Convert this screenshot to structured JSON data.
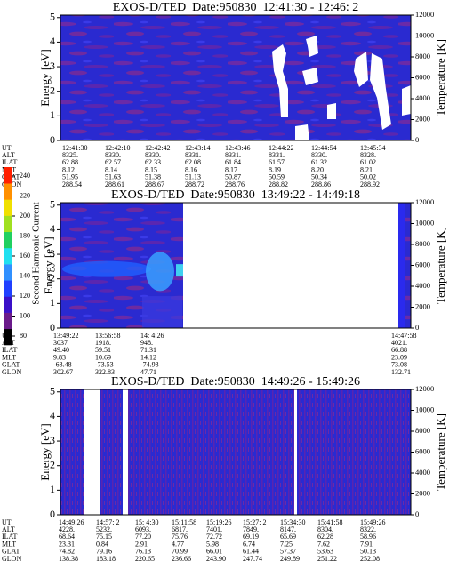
{
  "chart_data": [
    {
      "type": "spectrogram",
      "title": "EXOS-D/TED  Date:950830  12:41:30 - 12:46: 2",
      "ylabel": "Energy [eV]",
      "y2label": "Temperature [K]",
      "ylim": [
        0,
        5.1
      ],
      "yticks": [
        0,
        1,
        2,
        3,
        4,
        5
      ],
      "y2lim": [
        0,
        12000
      ],
      "y2ticks": [
        0,
        2000,
        4000,
        6000,
        8000,
        10000,
        12000
      ],
      "ephemeris": {
        "labels": [
          "UT",
          "ALT",
          "ILAT",
          "MLT",
          "GLAT",
          "GLON"
        ],
        "rows": [
          [
            "12:41:30",
            "12:42:10",
            "12:42:42",
            "12:43:14",
            "12:43:46",
            "12:44:22",
            "12:44:54",
            "12:45:34"
          ],
          [
            "8325.",
            "8330.",
            "8330.",
            "8331.",
            "8331.",
            "8331.",
            "8330.",
            "8328."
          ],
          [
            "62.88",
            "62.57",
            "62.33",
            "62.08",
            "61.84",
            "61.57",
            "61.32",
            "61.02"
          ],
          [
            "8.12",
            "8.14",
            "8.15",
            "8.16",
            "8.17",
            "8.19",
            "8.20",
            "8.21"
          ],
          [
            "51.95",
            "51.63",
            "51.38",
            "51.13",
            "50.87",
            "50.59",
            "50.34",
            "50.02"
          ],
          [
            "288.54",
            "288.61",
            "288.67",
            "288.72",
            "288.76",
            "288.82",
            "288.86",
            "288.92"
          ]
        ]
      }
    },
    {
      "type": "spectrogram",
      "title": "EXOS-D/TED  Date:950830  13:49:22 - 14:49:18",
      "ylabel": "Energy [eV]",
      "y2label": "Temperature [K]",
      "ylim": [
        0,
        5.1
      ],
      "yticks": [
        0,
        1,
        2,
        3,
        4,
        5
      ],
      "y2lim": [
        0,
        12000
      ],
      "y2ticks": [
        0,
        2000,
        4000,
        6000,
        8000,
        10000,
        12000
      ],
      "colorbar": {
        "label": "Second Harmonic Current",
        "ticks": [
          80,
          100,
          120,
          140,
          160,
          180,
          200,
          220,
          240
        ],
        "colors": [
          "#000000",
          "#6a1a8a",
          "#3a10c8",
          "#2040ff",
          "#3090ff",
          "#20e0f0",
          "#20d060",
          "#a0e020",
          "#f0e000",
          "#ff9000",
          "#ff2000"
        ]
      },
      "ephemeris": {
        "labels": [
          "UT",
          "ALT",
          "ILAT",
          "MLT",
          "GLAT",
          "GLON"
        ],
        "rows": [
          [
            "13:49:22",
            "13:56:58",
            "14: 4:26",
            "14:47:58"
          ],
          [
            "3037",
            "1918.",
            "948.",
            "4021."
          ],
          [
            "49.40",
            "59.51",
            "71.31",
            "66.88"
          ],
          [
            "9.83",
            "10.69",
            "14.12",
            "23.09"
          ],
          [
            "-63.48",
            "-73.53",
            "-74.93",
            "73.08"
          ],
          [
            "302.67",
            "322.83",
            "47.71",
            "132.71"
          ]
        ]
      }
    },
    {
      "type": "spectrogram",
      "title": "EXOS-D/TED  Date:950830  14:49:26 - 15:49:26",
      "ylabel": "Energy [eV]",
      "y2label": "Temperature [K]",
      "ylim": [
        0,
        5.1
      ],
      "yticks": [
        0,
        1,
        2,
        3,
        4,
        5
      ],
      "y2lim": [
        0,
        12000
      ],
      "y2ticks": [
        0,
        2000,
        4000,
        6000,
        8000,
        10000,
        12000
      ],
      "ephemeris": {
        "labels": [
          "UT",
          "ALT",
          "ILAT",
          "MLT",
          "GLAT",
          "GLON"
        ],
        "rows": [
          [
            "14:49:26",
            "14:57: 2",
            "15: 4:30",
            "15:11:58",
            "15:19:26",
            "15:27: 2",
            "15:34:30",
            "15:41:58",
            "15:49:26"
          ],
          [
            "4228.",
            "5232.",
            "6093.",
            "6817.",
            "7401.",
            "7849.",
            "8147.",
            "8304.",
            "8322."
          ],
          [
            "68.64",
            "75.15",
            "77.20",
            "75.76",
            "72.72",
            "69.19",
            "65.69",
            "62.28",
            "58.96"
          ],
          [
            "23.31",
            "0.84",
            "2.91",
            "4.77",
            "5.98",
            "6.74",
            "7.25",
            "7.62",
            "7.91"
          ],
          [
            "74.82",
            "79.16",
            "76.13",
            "70.99",
            "66.01",
            "61.44",
            "57.37",
            "53.63",
            "50.13"
          ],
          [
            "138.38",
            "183.18",
            "220.65",
            "236.66",
            "243.90",
            "247.74",
            "249.89",
            "251.22",
            "252.08"
          ]
        ]
      }
    }
  ]
}
